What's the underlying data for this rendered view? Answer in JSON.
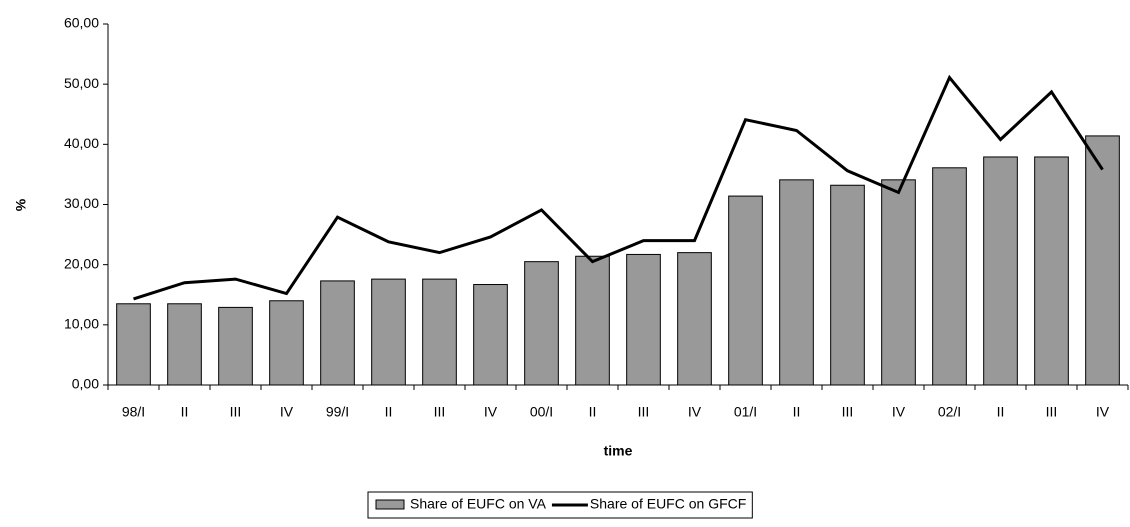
{
  "chart_data": {
    "type": "bar",
    "categories": [
      "98/I",
      "II",
      "III",
      "IV",
      "99/I",
      "II",
      "III",
      "IV",
      "00/I",
      "II",
      "III",
      "IV",
      "01/I",
      "II",
      "III",
      "IV",
      "02/I",
      "II",
      "III",
      "IV"
    ],
    "series": [
      {
        "name": "Share of EUFC on VA",
        "type": "bar",
        "color": "#999999",
        "values": [
          13.5,
          13.5,
          12.9,
          14.0,
          17.3,
          17.6,
          17.6,
          16.7,
          20.5,
          21.4,
          21.7,
          22.0,
          31.4,
          34.1,
          33.2,
          34.1,
          36.1,
          37.9,
          37.9,
          41.4
        ]
      },
      {
        "name": "Share of EUFC on GFCF",
        "type": "line",
        "color": "#000000",
        "values": [
          14.3,
          17.0,
          17.6,
          15.2,
          27.9,
          23.8,
          22.0,
          24.6,
          29.1,
          20.5,
          24.0,
          24.0,
          44.1,
          42.3,
          35.6,
          32.0,
          51.1,
          40.8,
          48.7,
          35.8
        ]
      }
    ],
    "ylabel": "%",
    "xlabel": "time",
    "ylim": [
      0,
      60
    ],
    "yticks": [
      {
        "value": 0,
        "label": "0,00"
      },
      {
        "value": 10,
        "label": "10,00"
      },
      {
        "value": 20,
        "label": "20,00"
      },
      {
        "value": 30,
        "label": "30,00"
      },
      {
        "value": 40,
        "label": "40,00"
      },
      {
        "value": 50,
        "label": "50,00"
      },
      {
        "value": 60,
        "label": "60,00"
      }
    ],
    "legend": "bottom"
  }
}
